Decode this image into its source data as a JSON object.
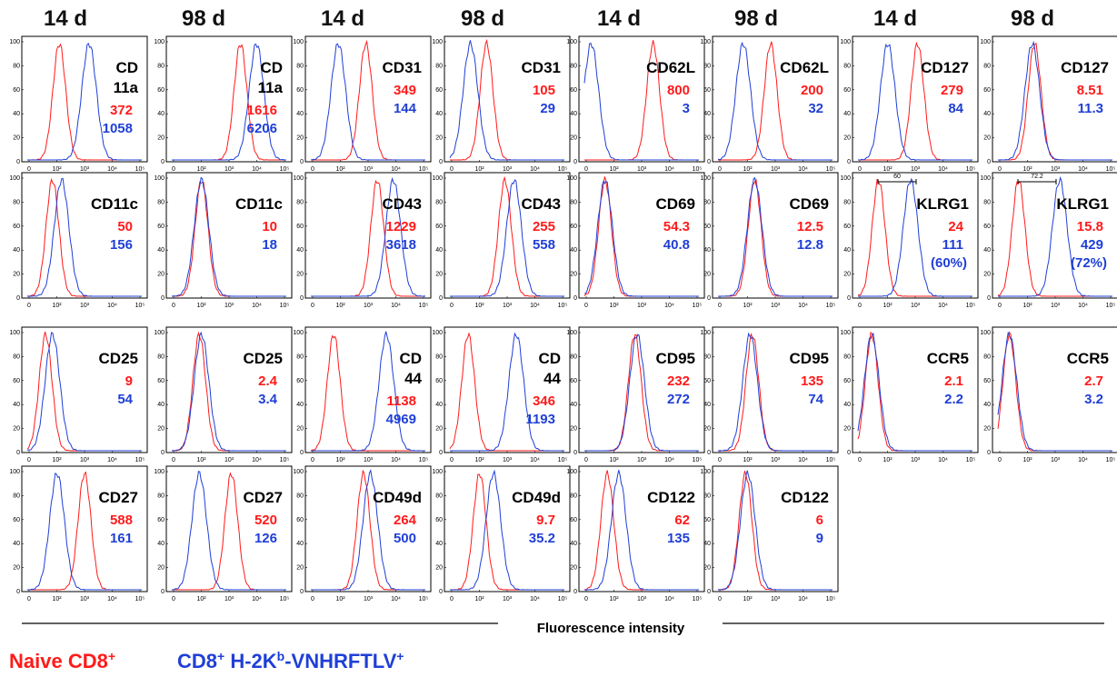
{
  "figure": {
    "column_headers": [
      "14 d",
      "98 d",
      "14 d",
      "98 d",
      "14 d",
      "98 d",
      "14 d",
      "98 d"
    ],
    "axis_title": "Fluorescence intensity",
    "legend": {
      "naive": {
        "text": "Naive CD8",
        "sup": "+",
        "color": "#ff1a1a"
      },
      "specific": {
        "parts": [
          {
            "t": "CD8",
            "s": ""
          },
          {
            "t": "+",
            "s": "sup"
          },
          {
            "t": " H-2K",
            "s": ""
          },
          {
            "t": "b",
            "s": "sup"
          },
          {
            "t": "-VNHRFTLV",
            "s": ""
          },
          {
            "t": "+",
            "s": "sup"
          }
        ],
        "color": "#1f3fd6"
      }
    },
    "colors": {
      "naive": "#ff1a1a",
      "specific": "#1f3fd6",
      "frame": "#000000"
    }
  },
  "chart_data": {
    "type": "histogram-overlay-grid",
    "x_scale": "log",
    "y_range": [
      0,
      100
    ],
    "y_ticks": [
      "0",
      "20",
      "40",
      "60",
      "80",
      "100"
    ],
    "x_ticks": [
      "0",
      "10²",
      "10³",
      "10⁴",
      "10⁵"
    ],
    "panels": [
      {
        "row": 0,
        "col": 0,
        "marker": [
          "CD",
          "11a"
        ],
        "naive": "372",
        "specific": "1058",
        "naive_peak": 1.4,
        "specific_peak": 2.7
      },
      {
        "row": 0,
        "col": 1,
        "marker": [
          "CD",
          "11a"
        ],
        "naive": "1616",
        "specific": "6206",
        "naive_peak": 3.0,
        "specific_peak": 3.7
      },
      {
        "row": 0,
        "col": 2,
        "marker": [
          "CD31"
        ],
        "naive": "349",
        "specific": "144",
        "naive_peak": 2.4,
        "specific_peak": 1.2
      },
      {
        "row": 0,
        "col": 3,
        "marker": [
          "CD31"
        ],
        "naive": "105",
        "specific": "29",
        "naive_peak": 1.6,
        "specific_peak": 0.9
      },
      {
        "row": 0,
        "col": 4,
        "marker": [
          "CD62L"
        ],
        "naive": "800",
        "specific": "3",
        "naive_peak": 3.0,
        "specific_peak": 0.3
      },
      {
        "row": 0,
        "col": 5,
        "marker": [
          "CD62L"
        ],
        "naive": "200",
        "specific": "32",
        "naive_peak": 2.3,
        "specific_peak": 1.1
      },
      {
        "row": 0,
        "col": 6,
        "marker": [
          "CD127"
        ],
        "naive": "279",
        "specific": "84",
        "naive_peak": 2.6,
        "specific_peak": 1.3
      },
      {
        "row": 0,
        "col": 7,
        "marker": [
          "CD127"
        ],
        "naive": "8.51",
        "specific": "11.3",
        "naive_peak": 1.6,
        "specific_peak": 1.5
      },
      {
        "row": 1,
        "col": 0,
        "marker": [
          "CD11c"
        ],
        "naive": "50",
        "specific": "156",
        "naive_peak": 1.1,
        "specific_peak": 1.5
      },
      {
        "row": 1,
        "col": 1,
        "marker": [
          "CD11c"
        ],
        "naive": "10",
        "specific": "18",
        "naive_peak": 1.3,
        "specific_peak": 1.3
      },
      {
        "row": 1,
        "col": 2,
        "marker": [
          "CD43"
        ],
        "naive": "1229",
        "specific": "3618",
        "naive_peak": 2.9,
        "specific_peak": 3.6
      },
      {
        "row": 1,
        "col": 3,
        "marker": [
          "CD43"
        ],
        "naive": "255",
        "specific": "558",
        "naive_peak": 2.4,
        "specific_peak": 2.8
      },
      {
        "row": 1,
        "col": 4,
        "marker": [
          "CD69"
        ],
        "naive": "54.3",
        "specific": "40.8",
        "naive_peak": 0.9,
        "specific_peak": 0.9
      },
      {
        "row": 1,
        "col": 5,
        "marker": [
          "CD69"
        ],
        "naive": "12.5",
        "specific": "12.8",
        "naive_peak": 1.6,
        "specific_peak": 1.6
      },
      {
        "row": 1,
        "col": 6,
        "marker": [
          "KLRG1"
        ],
        "naive": "24",
        "specific": "111",
        "specific_extra": "(60%)",
        "gate": "60",
        "naive_peak": 0.9,
        "specific_peak": 2.3
      },
      {
        "row": 1,
        "col": 7,
        "marker": [
          "KLRG1"
        ],
        "naive": "15.8",
        "specific": "429",
        "specific_extra": "(72%)",
        "gate": "72.2",
        "naive_peak": 0.9,
        "specific_peak": 2.7
      },
      {
        "row": 2,
        "col": 0,
        "marker": [
          "CD25"
        ],
        "naive": "9",
        "specific": "54",
        "naive_peak": 0.8,
        "specific_peak": 1.1
      },
      {
        "row": 2,
        "col": 1,
        "marker": [
          "CD25"
        ],
        "naive": "2.4",
        "specific": "3.4",
        "naive_peak": 1.2,
        "specific_peak": 1.3
      },
      {
        "row": 2,
        "col": 2,
        "marker": [
          "CD",
          "44"
        ],
        "naive": "1138",
        "specific": "4969",
        "naive_peak": 1.0,
        "specific_peak": 3.3
      },
      {
        "row": 2,
        "col": 3,
        "marker": [
          "CD",
          "44"
        ],
        "naive": "346",
        "specific": "1193",
        "naive_peak": 0.8,
        "specific_peak": 2.9
      },
      {
        "row": 2,
        "col": 4,
        "marker": [
          "CD95"
        ],
        "naive": "232",
        "specific": "272",
        "naive_peak": 2.2,
        "specific_peak": 2.3
      },
      {
        "row": 2,
        "col": 5,
        "marker": [
          "CD95"
        ],
        "naive": "135",
        "specific": "74",
        "naive_peak": 1.5,
        "specific_peak": 1.4
      },
      {
        "row": 2,
        "col": 6,
        "marker": [
          "CCR5"
        ],
        "naive": "2.1",
        "specific": "2.2",
        "naive_peak": 0.6,
        "specific_peak": 0.6
      },
      {
        "row": 2,
        "col": 7,
        "marker": [
          "CCR5"
        ],
        "naive": "2.7",
        "specific": "3.2",
        "naive_peak": 0.5,
        "specific_peak": 0.5
      },
      {
        "row": 3,
        "col": 0,
        "marker": [
          "CD27"
        ],
        "naive": "588",
        "specific": "161",
        "naive_peak": 2.5,
        "specific_peak": 1.3
      },
      {
        "row": 3,
        "col": 1,
        "marker": [
          "CD27"
        ],
        "naive": "520",
        "specific": "126",
        "naive_peak": 2.6,
        "specific_peak": 1.2
      },
      {
        "row": 3,
        "col": 2,
        "marker": [
          "CD49d"
        ],
        "naive": "264",
        "specific": "500",
        "naive_peak": 2.3,
        "specific_peak": 2.6
      },
      {
        "row": 3,
        "col": 3,
        "marker": [
          "CD49d"
        ],
        "naive": "9.7",
        "specific": "35.2",
        "naive_peak": 1.3,
        "specific_peak": 1.9
      },
      {
        "row": 3,
        "col": 4,
        "marker": [
          "CD122"
        ],
        "naive": "62",
        "specific": "135",
        "naive_peak": 1.0,
        "specific_peak": 1.5
      },
      {
        "row": 3,
        "col": 5,
        "marker": [
          "CD122"
        ],
        "naive": "6",
        "specific": "9",
        "naive_peak": 1.2,
        "specific_peak": 1.3
      }
    ]
  }
}
